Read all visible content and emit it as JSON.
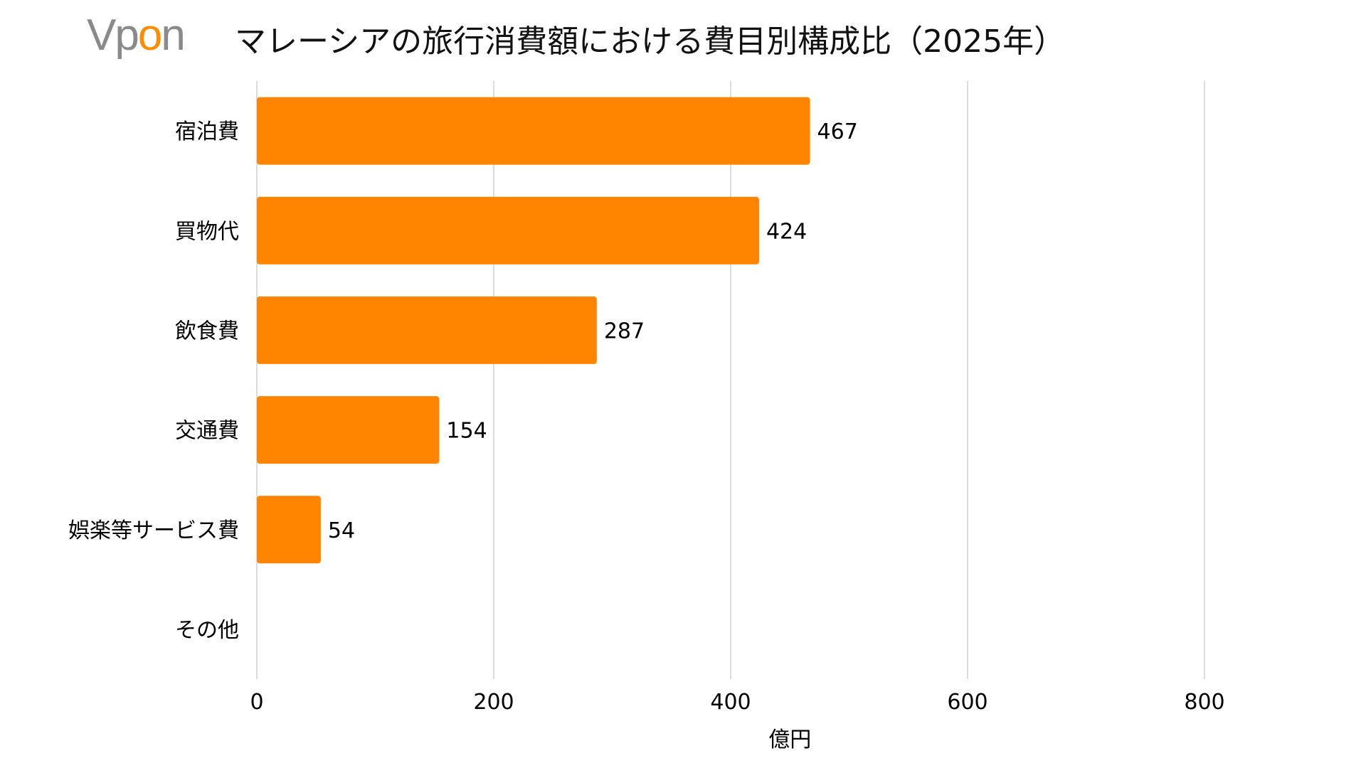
{
  "logo": {
    "text": "Vpon",
    "prefix": "Vp",
    "accent": "o",
    "suffix": "n"
  },
  "chart_data": {
    "type": "bar",
    "orientation": "horizontal",
    "title": "マレーシアの旅行消費額における費目別構成比（2025年）",
    "categories": [
      "宿泊費",
      "買物代",
      "飲食費",
      "交通費",
      "娯楽等サービス費",
      "その他"
    ],
    "values": [
      467,
      424,
      287,
      154,
      54,
      null
    ],
    "data_labels": [
      "467",
      "424",
      "287",
      "154",
      "54",
      ""
    ],
    "xlabel": "億円",
    "ylabel": "",
    "xlim": [
      0,
      900
    ],
    "xticks": [
      0,
      200,
      400,
      600,
      800
    ],
    "grid": "vertical",
    "bar_color": "#ff8400",
    "gridline_color": "#d0d0d0"
  }
}
